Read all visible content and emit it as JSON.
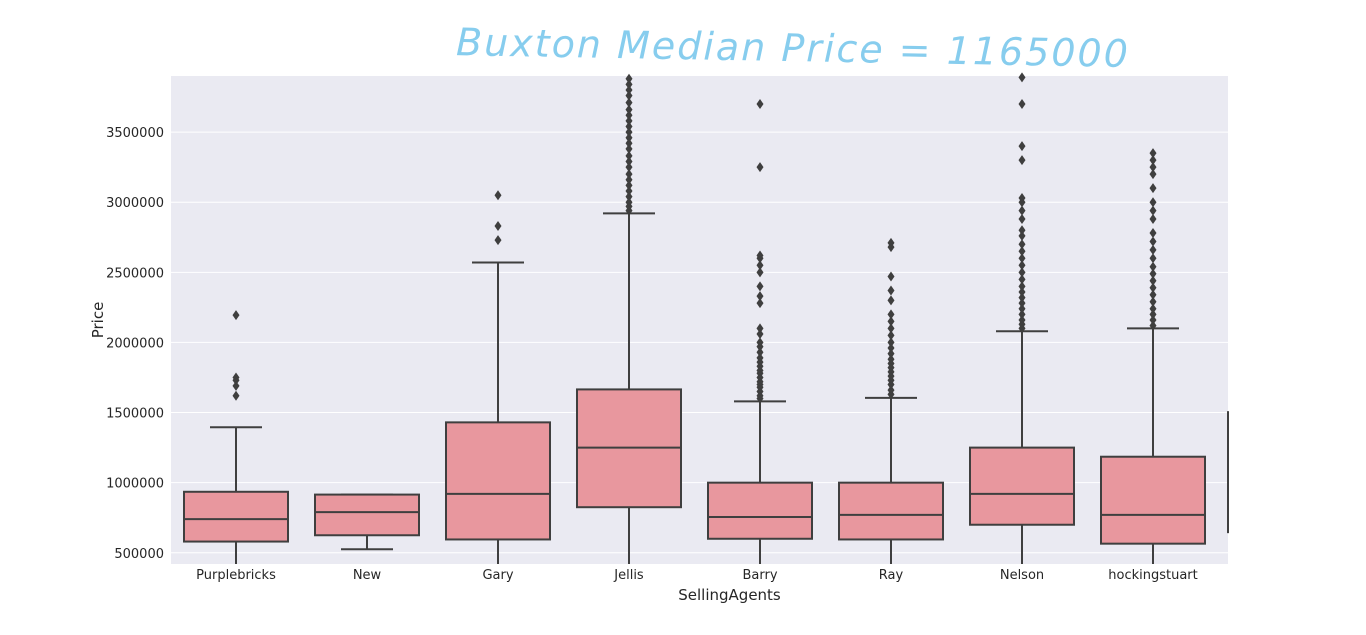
{
  "chart_data": {
    "type": "box",
    "title": "Buxton Median Price = 1165000",
    "xlabel": "SellingAgents",
    "ylabel": "Price",
    "ylim": [
      420000,
      3900000
    ],
    "yticks": [
      500000,
      1000000,
      1500000,
      2000000,
      2500000,
      3000000,
      3500000
    ],
    "ytick_labels": [
      "500000",
      "1000000",
      "1500000",
      "2000000",
      "2500000",
      "3000000",
      "3500000"
    ],
    "grid": true,
    "colors": {
      "background": "#eaeaf2",
      "box": "#e8979e",
      "line": "#3f3f3f",
      "grid": "#ffffff"
    },
    "categories": [
      "Purplebricks",
      "New",
      "Gary",
      "Jellis",
      "Barry",
      "Ray",
      "Nelson",
      "hockingstuart"
    ],
    "boxes": [
      {
        "name": "Purplebricks",
        "whislo": 420000,
        "q1": 580000,
        "med": 740000,
        "q3": 935000,
        "whishi": 1395000,
        "fliers": [
          1620000,
          1690000,
          1730000,
          1750000,
          2195000
        ]
      },
      {
        "name": "New",
        "whislo": 525000,
        "q1": 625000,
        "med": 790000,
        "q3": 915000,
        "whishi": 915000,
        "fliers": []
      },
      {
        "name": "Gary",
        "whislo": 420000,
        "q1": 595000,
        "med": 920000,
        "q3": 1430000,
        "whishi": 2570000,
        "fliers": [
          2730000,
          2830000,
          3050000
        ]
      },
      {
        "name": "Jellis",
        "whislo": 420000,
        "q1": 825000,
        "med": 1250000,
        "q3": 1665000,
        "whishi": 2920000,
        "fliers": [
          2940000,
          2970000,
          3000000,
          3040000,
          3080000,
          3120000,
          3160000,
          3200000,
          3250000,
          3290000,
          3330000,
          3380000,
          3420000,
          3460000,
          3500000,
          3540000,
          3580000,
          3620000,
          3660000,
          3710000,
          3760000,
          3800000,
          3840000,
          3880000
        ]
      },
      {
        "name": "Barry",
        "whislo": 420000,
        "q1": 600000,
        "med": 755000,
        "q3": 1000000,
        "whishi": 1580000,
        "fliers": [
          1600000,
          1620000,
          1650000,
          1680000,
          1700000,
          1720000,
          1750000,
          1780000,
          1800000,
          1830000,
          1860000,
          1890000,
          1930000,
          1970000,
          2000000,
          2060000,
          2100000,
          2280000,
          2330000,
          2400000,
          2500000,
          2550000,
          2600000,
          2620000,
          3250000,
          3700000
        ]
      },
      {
        "name": "Ray",
        "whislo": 420000,
        "q1": 595000,
        "med": 770000,
        "q3": 1000000,
        "whishi": 1605000,
        "fliers": [
          1630000,
          1660000,
          1700000,
          1730000,
          1760000,
          1790000,
          1820000,
          1850000,
          1880000,
          1920000,
          1960000,
          2000000,
          2050000,
          2100000,
          2150000,
          2200000,
          2300000,
          2370000,
          2470000,
          2680000,
          2710000
        ]
      },
      {
        "name": "Nelson",
        "whislo": 420000,
        "q1": 700000,
        "med": 920000,
        "q3": 1250000,
        "whishi": 2080000,
        "fliers": [
          2100000,
          2130000,
          2160000,
          2200000,
          2240000,
          2280000,
          2320000,
          2360000,
          2400000,
          2450000,
          2500000,
          2550000,
          2600000,
          2650000,
          2700000,
          2760000,
          2800000,
          2880000,
          2940000,
          3000000,
          3030000,
          3300000,
          3400000,
          3700000,
          3890000
        ]
      },
      {
        "name": "hockingstuart",
        "whislo": 420000,
        "q1": 565000,
        "med": 770000,
        "q3": 1185000,
        "whishi": 2100000,
        "fliers": [
          2120000,
          2160000,
          2200000,
          2240000,
          2290000,
          2340000,
          2390000,
          2440000,
          2490000,
          2540000,
          2600000,
          2660000,
          2720000,
          2780000,
          2880000,
          2940000,
          3000000,
          3100000,
          3200000,
          3250000,
          3300000,
          3350000
        ]
      }
    ]
  }
}
